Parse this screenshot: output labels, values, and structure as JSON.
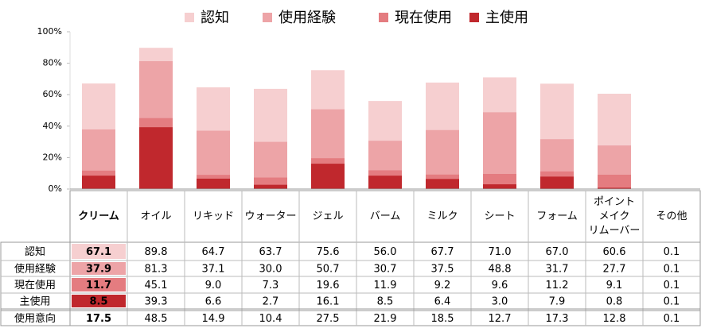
{
  "chart_data": {
    "type": "bar",
    "categories": [
      "クリーム",
      "オイル",
      "リキッド",
      "ウォーター",
      "ジェル",
      "バーム",
      "ミルク",
      "シート",
      "フォーム",
      "ポイント\nメイク\nリムーバー",
      "その他"
    ],
    "ylim": [
      0,
      100
    ],
    "yticks": [
      {
        "value": 0,
        "label": "0%"
      },
      {
        "value": 20,
        "label": "20%"
      },
      {
        "value": 40,
        "label": "40%"
      },
      {
        "value": 60,
        "label": "60%"
      },
      {
        "value": 80,
        "label": "80%"
      },
      {
        "value": 100,
        "label": "100%"
      }
    ],
    "series": [
      {
        "name": "認知",
        "color": "#f6cfd0",
        "values": [
          67.1,
          89.8,
          64.7,
          63.7,
          75.6,
          56.0,
          67.7,
          71.0,
          67.0,
          60.6,
          0.1
        ],
        "value_labels": [
          "67.1",
          "89.8",
          "64.7",
          "63.7",
          "75.6",
          "56.0",
          "67.7",
          "71.0",
          "67.0",
          "60.6",
          "0.1"
        ]
      },
      {
        "name": "使用経験",
        "color": "#eda4a7",
        "values": [
          37.9,
          81.3,
          37.1,
          30.0,
          50.7,
          30.7,
          37.5,
          48.8,
          31.7,
          27.7,
          0.1
        ],
        "value_labels": [
          "37.9",
          "81.3",
          "37.1",
          "30.0",
          "50.7",
          "30.7",
          "37.5",
          "48.8",
          "31.7",
          "27.7",
          "0.1"
        ]
      },
      {
        "name": "現在使用",
        "color": "#e47c80",
        "values": [
          11.7,
          45.1,
          9.0,
          7.3,
          19.6,
          11.9,
          9.2,
          9.6,
          11.2,
          9.1,
          0.1
        ],
        "value_labels": [
          "11.7",
          "45.1",
          "9.0",
          "7.3",
          "19.6",
          "11.9",
          "9.2",
          "9.6",
          "11.2",
          "9.1",
          "0.1"
        ]
      },
      {
        "name": "主使用",
        "color": "#c0282d",
        "values": [
          8.5,
          39.3,
          6.6,
          2.7,
          16.1,
          8.5,
          6.4,
          3.0,
          7.9,
          0.8,
          0.1
        ],
        "value_labels": [
          "8.5",
          "39.3",
          "6.6",
          "2.7",
          "16.1",
          "8.5",
          "6.4",
          "3.0",
          "7.9",
          "0.8",
          "0.1"
        ]
      }
    ],
    "intent": {
      "name": "使用意向",
      "values": [
        17.5,
        48.5,
        14.9,
        10.4,
        27.5,
        21.9,
        18.5,
        12.7,
        17.3,
        12.8,
        0.1
      ],
      "value_labels": [
        "17.5",
        "48.5",
        "14.9",
        "10.4",
        "27.5",
        "21.9",
        "18.5",
        "12.7",
        "17.3",
        "12.8",
        "0.1"
      ]
    }
  }
}
